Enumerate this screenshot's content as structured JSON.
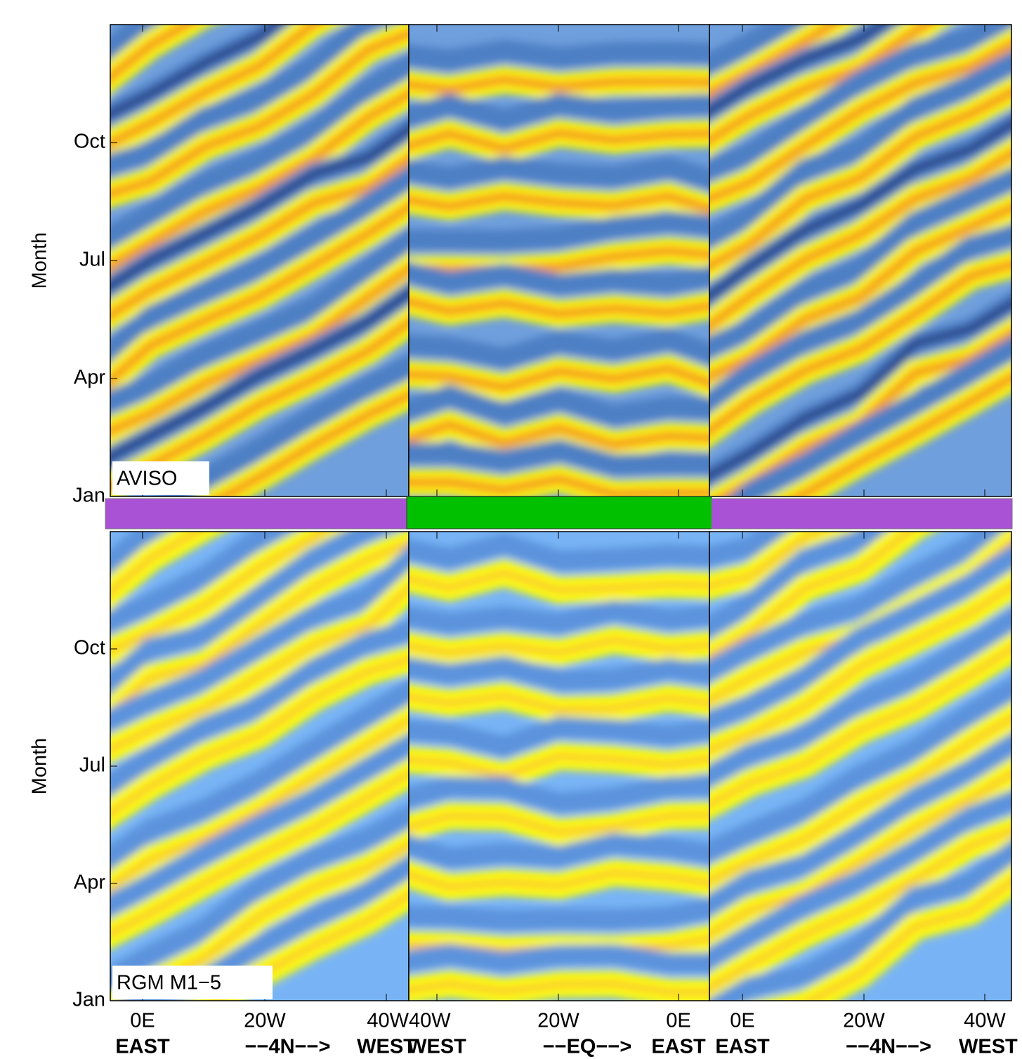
{
  "plots": [
    {
      "panel_label": "AVISO",
      "ylabel": "Month",
      "yticks": [
        "Jan",
        "Apr",
        "Jul",
        "Oct"
      ]
    },
    {
      "panel_label": "RGM M1−5",
      "ylabel": "Month",
      "yticks": [
        "Jan",
        "Apr",
        "Jul",
        "Oct"
      ]
    }
  ],
  "columns": [
    {
      "xticks": [
        "0E",
        "20W",
        "40W"
      ],
      "direction": [
        "EAST",
        "−−4N−−>",
        "WEST"
      ]
    },
    {
      "xticks": [
        "40W",
        "20W",
        "0E"
      ],
      "direction": [
        "WEST",
        "−−EQ−−>",
        "EAST"
      ]
    },
    {
      "xticks": [
        "0E",
        "20W",
        "40W"
      ],
      "direction": [
        "EAST",
        "−−4N−−>",
        "WEST"
      ]
    }
  ]
}
